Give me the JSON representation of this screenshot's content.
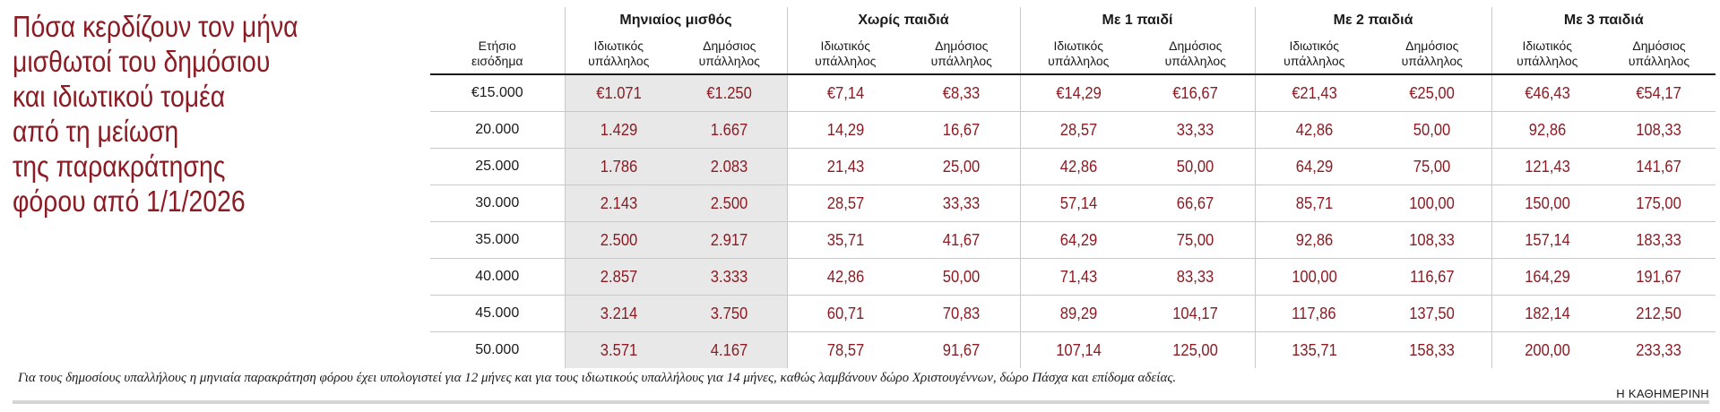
{
  "title": {
    "lines": [
      "Πόσα κερδίζουν τον μήνα",
      "μισθωτοί του δημόσιου",
      "και ιδιωτικού τομέα",
      "από τη μείωση",
      "της παρακράτησης",
      "φόρου από 1/1/2026"
    ]
  },
  "table": {
    "income_header": "Ετήσιο εισόδημα",
    "groups": [
      "Μηνιαίος μισθός",
      "Χωρίς παιδιά",
      "Με 1 παιδί",
      "Με 2 παιδιά",
      "Με 3 παιδιά"
    ],
    "sub_private": "Ιδιωτικός υπάλληλος",
    "sub_public": "Δημόσιος υπάλληλος",
    "rows": [
      {
        "income": "€15.000",
        "values": [
          "€1.071",
          "€1.250",
          "€7,14",
          "€8,33",
          "€14,29",
          "€16,67",
          "€21,43",
          "€25,00",
          "€46,43",
          "€54,17"
        ]
      },
      {
        "income": "20.000",
        "values": [
          "1.429",
          "1.667",
          "14,29",
          "16,67",
          "28,57",
          "33,33",
          "42,86",
          "50,00",
          "92,86",
          "108,33"
        ]
      },
      {
        "income": "25.000",
        "values": [
          "1.786",
          "2.083",
          "21,43",
          "25,00",
          "42,86",
          "50,00",
          "64,29",
          "75,00",
          "121,43",
          "141,67"
        ]
      },
      {
        "income": "30.000",
        "values": [
          "2.143",
          "2.500",
          "28,57",
          "33,33",
          "57,14",
          "66,67",
          "85,71",
          "100,00",
          "150,00",
          "175,00"
        ]
      },
      {
        "income": "35.000",
        "values": [
          "2.500",
          "2.917",
          "35,71",
          "41,67",
          "64,29",
          "75,00",
          "92,86",
          "108,33",
          "157,14",
          "183,33"
        ]
      },
      {
        "income": "40.000",
        "values": [
          "2.857",
          "3.333",
          "42,86",
          "50,00",
          "71,43",
          "83,33",
          "100,00",
          "116,67",
          "164,29",
          "191,67"
        ]
      },
      {
        "income": "45.000",
        "values": [
          "3.214",
          "3.750",
          "60,71",
          "70,83",
          "89,29",
          "104,17",
          "117,86",
          "137,50",
          "182,14",
          "212,50"
        ]
      },
      {
        "income": "50.000",
        "values": [
          "3.571",
          "4.167",
          "78,57",
          "91,67",
          "107,14",
          "125,00",
          "135,71",
          "158,33",
          "200,00",
          "233,33"
        ]
      }
    ]
  },
  "note": "Για τους δημοσίους υπαλλήλους η μηνιαία παρακράτηση φόρου έχει υπολογιστεί για 12 μήνες και για τους ιδιωτικούς υπαλλήλους για 14 μήνες, καθώς λαμβάνουν δώρο Χριστουγέννων, δώρο Πάσχα και επίδομα αδείας.",
  "source": "Η ΚΑΘΗΜΕΡΙΝΗ",
  "colors": {
    "accent": "#8b1c24",
    "shade": "#e8e8e8"
  }
}
